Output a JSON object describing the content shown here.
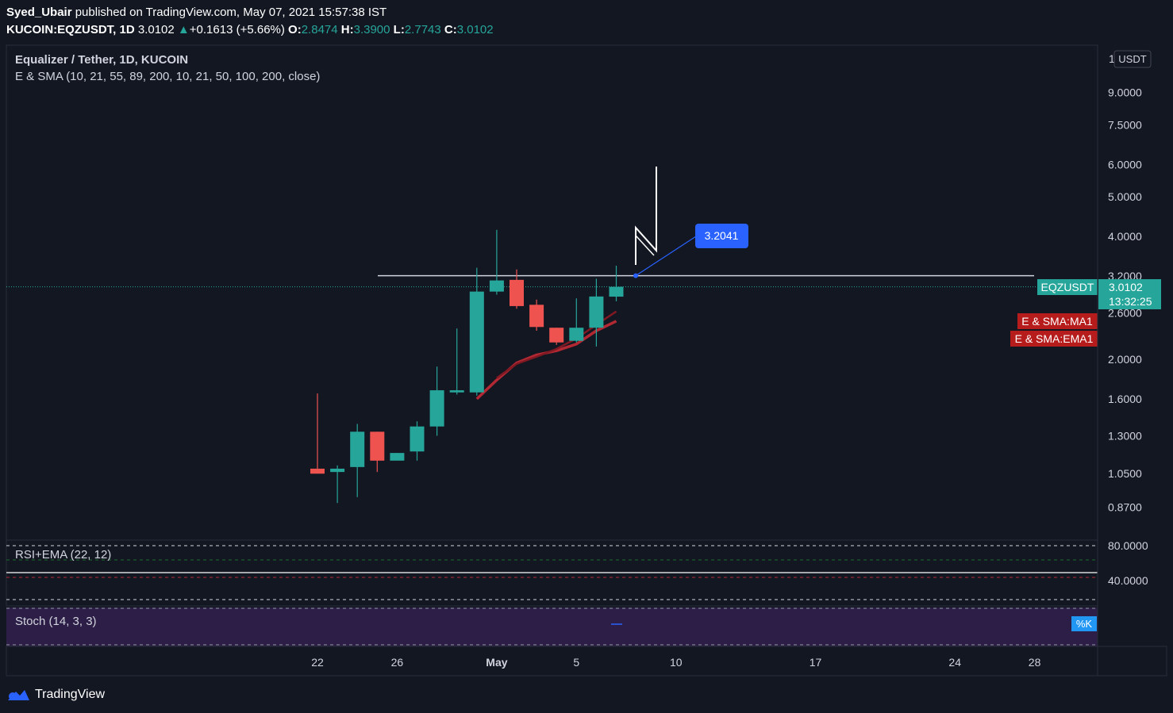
{
  "header": {
    "author": "Syed_Ubair",
    "published_text": "published on TradingView.com, May 07, 2021 15:57:38 IST",
    "symbol": "KUCOIN:EQZUSDT, 1D",
    "last": "3.0102",
    "change": "+0.1613 (+5.66%)",
    "o_label": "O:",
    "o": "2.8474",
    "h_label": "H:",
    "h": "3.3900",
    "l_label": "L:",
    "l": "2.7743",
    "c_label": "C:",
    "c": "3.0102"
  },
  "main_pane": {
    "title": "Equalizer / Tether, 1D, KUCOIN",
    "indicator": "E & SMA (10, 21, 55, 89, 200, 10, 21, 50, 100, 200, close)",
    "currency": "USDT",
    "symbol_tag": "EQZUSDT",
    "price_tag": "3.0102",
    "countdown": "13:32:25",
    "ma_tag": "E & SMA:MA1",
    "ema_tag": "E & SMA:EMA1",
    "callout": "3.2041",
    "axis_top_partial": "1"
  },
  "rsi_pane": {
    "title": "RSI+EMA (22, 12)",
    "ticks": [
      "80.0000",
      "40.0000"
    ]
  },
  "stoch_pane": {
    "title": "Stoch (14, 3, 3)",
    "tag": "%K"
  },
  "footer": {
    "brand": "TradingView"
  },
  "chart_data": {
    "type": "candlestick",
    "title": "Equalizer / Tether, 1D, KUCOIN",
    "y_scale": "log",
    "y_ticks": [
      0.87,
      1.05,
      1.3,
      1.6,
      2.0,
      2.6,
      3.2,
      4.0,
      5.0,
      6.0,
      7.5,
      9.0
    ],
    "y_tick_labels": [
      "0.8700",
      "1.0500",
      "1.3000",
      "1.6000",
      "2.0000",
      "2.6000",
      "3.2000",
      "4.0000",
      "5.0000",
      "6.0000",
      "7.5000",
      "9.0000"
    ],
    "x_labels": [
      {
        "label": "22",
        "day": 22
      },
      {
        "label": "26",
        "day": 26
      },
      {
        "label": "May",
        "day": 31
      },
      {
        "label": "5",
        "day": 35
      },
      {
        "label": "10",
        "day": 40
      },
      {
        "label": "17",
        "day": 47
      },
      {
        "label": "24",
        "day": 54
      },
      {
        "label": "28",
        "day": 58
      }
    ],
    "candles": [
      {
        "day": 22,
        "o": 1.08,
        "h": 1.65,
        "l": 1.05,
        "c": 1.05
      },
      {
        "day": 23,
        "o": 1.06,
        "h": 1.1,
        "l": 0.89,
        "c": 1.08
      },
      {
        "day": 24,
        "o": 1.09,
        "h": 1.39,
        "l": 0.92,
        "c": 1.33
      },
      {
        "day": 25,
        "o": 1.33,
        "h": 1.33,
        "l": 1.06,
        "c": 1.13
      },
      {
        "day": 26,
        "o": 1.13,
        "h": 1.18,
        "l": 1.14,
        "c": 1.18
      },
      {
        "day": 27,
        "o": 1.19,
        "h": 1.41,
        "l": 1.13,
        "c": 1.37
      },
      {
        "day": 28,
        "o": 1.37,
        "h": 1.92,
        "l": 1.3,
        "c": 1.68
      },
      {
        "day": 29,
        "o": 1.66,
        "h": 2.38,
        "l": 1.64,
        "c": 1.68
      },
      {
        "day": 30,
        "o": 1.66,
        "h": 3.35,
        "l": 1.63,
        "c": 2.93
      },
      {
        "day": 31,
        "o": 2.93,
        "h": 4.15,
        "l": 2.88,
        "c": 3.12
      },
      {
        "day": 32,
        "o": 3.13,
        "h": 3.32,
        "l": 2.66,
        "c": 2.7
      },
      {
        "day": 33,
        "o": 2.72,
        "h": 2.8,
        "l": 2.35,
        "c": 2.4
      },
      {
        "day": 34,
        "o": 2.39,
        "h": 2.39,
        "l": 2.17,
        "c": 2.2
      },
      {
        "day": 35,
        "o": 2.22,
        "h": 2.82,
        "l": 2.2,
        "c": 2.39
      },
      {
        "day": 36,
        "o": 2.39,
        "h": 3.15,
        "l": 2.15,
        "c": 2.85
      },
      {
        "day": 37,
        "o": 2.8474,
        "h": 3.39,
        "l": 2.7743,
        "c": 3.0102
      }
    ],
    "series": [
      {
        "name": "E & SMA:MA1",
        "color": "#b22833",
        "points": [
          [
            30,
            1.6
          ],
          [
            31,
            1.78
          ],
          [
            32,
            1.96
          ],
          [
            33,
            2.05
          ],
          [
            34,
            2.1
          ],
          [
            35,
            2.18
          ],
          [
            36,
            2.35
          ],
          [
            37,
            2.48
          ]
        ]
      },
      {
        "name": "E & SMA:EMA1",
        "color": "#801922",
        "points": [
          [
            31,
            1.8
          ],
          [
            32,
            1.95
          ],
          [
            33,
            2.03
          ],
          [
            34,
            2.12
          ],
          [
            35,
            2.25
          ],
          [
            36,
            2.43
          ],
          [
            37,
            2.62
          ]
        ]
      }
    ],
    "horizontal_line": 3.2041,
    "callout_value": 3.2041,
    "current_price": 3.0102,
    "colors": {
      "up": "#26a69a",
      "down": "#ef5350",
      "background": "#131722",
      "grid": "#363a45",
      "callout": "#2962ff",
      "tag_red": "#b71c1c",
      "stoch_bg": "#2c1e47"
    }
  }
}
